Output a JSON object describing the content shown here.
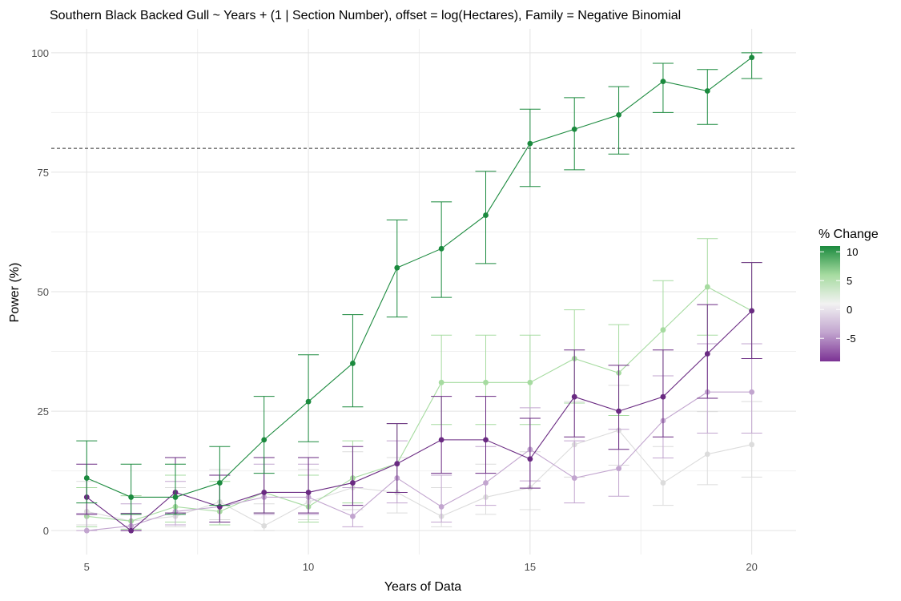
{
  "chart_data": {
    "type": "line",
    "title": "Southern Black Backed Gull ~ Years + (1 | Section Number), offset = log(Hectares), Family = Negative Binomial",
    "xlabel": "Years of Data",
    "ylabel": "Power (%)",
    "xlim": [
      4.2,
      21
    ],
    "ylim": [
      -5,
      105
    ],
    "x_ticks": [
      5,
      10,
      15,
      20
    ],
    "y_ticks": [
      0,
      25,
      50,
      75,
      100
    ],
    "grid": true,
    "reference_line": {
      "y": 80,
      "style": "dashed"
    },
    "legend": {
      "title": "% Change",
      "placement": "right",
      "ticks": [
        10,
        5,
        0,
        -5
      ],
      "range": [
        -9,
        11
      ]
    },
    "x": [
      5,
      6,
      7,
      8,
      9,
      10,
      11,
      12,
      13,
      14,
      15,
      16,
      17,
      18,
      19,
      20
    ],
    "series": [
      {
        "change": 10,
        "color": "#1b8a3e",
        "values": [
          11,
          7,
          7,
          10,
          19,
          27,
          35,
          55,
          59,
          66,
          81,
          84,
          87,
          94,
          92,
          99
        ],
        "lower": [
          5.8,
          3.4,
          3.4,
          5.3,
          12.0,
          18.6,
          25.9,
          44.7,
          48.8,
          55.9,
          72.0,
          75.5,
          78.8,
          87.5,
          85.0,
          94.6
        ],
        "upper": [
          18.8,
          13.9,
          13.9,
          17.6,
          28.1,
          36.8,
          45.2,
          65.0,
          68.8,
          75.2,
          88.2,
          90.6,
          92.9,
          97.8,
          96.5,
          100.0
        ]
      },
      {
        "change": 5,
        "color": "#a6dba0",
        "values": [
          3,
          2,
          5,
          4,
          8,
          5,
          11,
          14,
          31,
          31,
          31,
          36,
          33,
          42,
          51,
          46
        ],
        "lower": [
          0.8,
          0.3,
          1.8,
          1.2,
          3.7,
          1.8,
          5.8,
          8.0,
          22.2,
          22.2,
          22.2,
          26.7,
          24.1,
          32.4,
          40.9,
          36.0
        ],
        "upper": [
          9.0,
          7.3,
          11.6,
          10.3,
          15.3,
          11.6,
          18.8,
          22.4,
          40.9,
          40.9,
          40.9,
          46.2,
          43.1,
          52.3,
          61.1,
          56.1
        ]
      },
      {
        "change": 0,
        "color": "#dcdcdc",
        "values": [
          4,
          2,
          3,
          6,
          1,
          6,
          9,
          8,
          3,
          7,
          9,
          18,
          21,
          10,
          16,
          18
        ],
        "lower": [
          1.2,
          0.3,
          0.8,
          2.3,
          0.0,
          2.3,
          4.4,
          3.7,
          0.8,
          3.4,
          4.4,
          11.2,
          13.7,
          5.3,
          9.6,
          11.2
        ],
        "upper": [
          10.3,
          7.3,
          9.0,
          12.8,
          5.6,
          12.8,
          16.5,
          15.3,
          9.0,
          13.9,
          16.5,
          27.0,
          30.4,
          17.6,
          24.9,
          27.0
        ]
      },
      {
        "change": -5,
        "color": "#c2a5cf",
        "values": [
          0,
          1,
          4,
          5,
          7,
          7,
          3,
          11,
          5,
          10,
          17,
          11,
          13,
          23,
          29,
          29
        ],
        "lower": [
          0.0,
          0.0,
          1.2,
          1.8,
          3.4,
          3.4,
          0.8,
          5.8,
          1.8,
          5.3,
          10.4,
          5.8,
          7.2,
          15.2,
          20.4,
          20.4
        ],
        "upper": [
          3.6,
          5.6,
          10.3,
          11.6,
          13.9,
          13.9,
          9.0,
          18.8,
          11.6,
          17.6,
          25.7,
          18.8,
          21.2,
          32.4,
          39.1,
          39.1
        ]
      },
      {
        "change": -10,
        "color": "#6a2a82",
        "values": [
          7,
          0,
          8,
          5,
          8,
          8,
          10,
          14,
          19,
          19,
          15,
          28,
          25,
          28,
          37,
          46
        ],
        "lower": [
          3.4,
          0.0,
          3.7,
          1.8,
          3.7,
          3.7,
          5.3,
          8.0,
          12.0,
          12.0,
          8.9,
          19.6,
          17.0,
          19.6,
          27.7,
          36.0
        ],
        "upper": [
          13.9,
          3.6,
          15.3,
          11.6,
          15.3,
          15.3,
          17.6,
          22.4,
          28.1,
          28.1,
          23.5,
          37.8,
          34.6,
          37.8,
          47.3,
          56.1
        ]
      }
    ]
  }
}
